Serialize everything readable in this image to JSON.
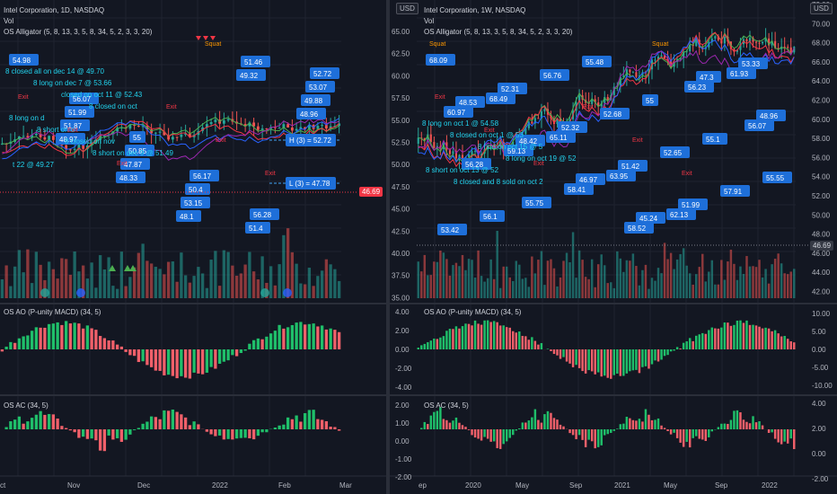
{
  "colors": {
    "bg": "#131722",
    "up": "#26a69a",
    "down": "#ef5350",
    "lips": "#4caf50",
    "teeth": "#f23645",
    "jaw": "#2962ff",
    "callout": "#1e6fd9",
    "note": "#22d3ee",
    "hist_up": "#1fbf6a",
    "hist_down": "#f0606a"
  },
  "icons": [
    "calendar-icon",
    "earnings-icon",
    "triangle-marker-icon"
  ],
  "left": {
    "header": {
      "title": "Intel Corporation, 1D, NASDAQ",
      "vol": "Vol",
      "alligator": "OS Alligator (5, 8, 13, 3, 5, 8, 34, 5, 2, 3, 3, 20)"
    },
    "ao_label": "OS AO (P-unity MACD) (34, 5)",
    "ac_label": "OS AC (34, 5)",
    "x_ticks": [
      "ct",
      "Nov",
      "Dec",
      "2022",
      "Feb",
      "Mar"
    ],
    "squat": "Squat",
    "callouts": [
      "54.98",
      "56.07",
      "55",
      "56.17",
      "56.28",
      "52.72",
      "51.99",
      "50.85",
      "50.4",
      "51.4",
      "53.07",
      "51.87",
      "47.87",
      "53.15",
      "51.46",
      "49.88",
      "48.97",
      "48.33",
      "48.1",
      "49.32",
      "48.96"
    ],
    "notes": [
      "8 closed all on dec 14 @ 49.70",
      "8 long on dec 7 @ 53.66",
      "closed on oct 11 @ 52.43",
      "8 closed on oct",
      "8 long on d",
      "8 short on o",
      "8 closed on nov",
      "8 short on dec 9 @ 51.49",
      "t 22 @ 49.27"
    ],
    "hline_labels": [
      "H (3) = 52.72",
      "L (3) = 47.78"
    ],
    "price_badge": "46.69",
    "exit_label": "Exit"
  },
  "right": {
    "header": {
      "title": "Intel Corporation, 1W, NASDAQ",
      "vol": "Vol",
      "alligator": "OS Alligator (5, 8, 13, 3, 5, 8, 34, 5, 2, 3, 3, 20)"
    },
    "usd": "USD",
    "ao_label": "OS AO (P-unity MACD) (34, 5)",
    "ac_label": "OS AC (34, 5)",
    "squat": "Squat",
    "usd_left": "USD",
    "y_left": [
      "65.00",
      "62.50",
      "60.00",
      "57.50",
      "55.00",
      "52.50",
      "50.00",
      "47.50",
      "45.00",
      "42.50",
      "40.00",
      "37.50",
      "35.00"
    ],
    "y_right": [
      "72.00",
      "70.00",
      "68.00",
      "66.00",
      "64.00",
      "62.00",
      "60.00",
      "58.00",
      "56.00",
      "54.00",
      "52.00",
      "50.00",
      "48.00",
      "46.00",
      "44.00",
      "42.00"
    ],
    "ao_left": [
      "4.00",
      "2.00",
      "0.00",
      "-2.00",
      "-4.00"
    ],
    "ao_right": [
      "10.00",
      "5.00",
      "0.00",
      "-5.00",
      "-10.00"
    ],
    "ac_left": [
      "2.00",
      "1.00",
      "0.00",
      "-1.00",
      "-2.00"
    ],
    "ac_right": [
      "4.00",
      "2.00",
      "0.00",
      "-2.00",
      "-4.00"
    ],
    "x_ticks": [
      "ep",
      "2020",
      "May",
      "Sep",
      "2021",
      "May",
      "Sep",
      "2022"
    ],
    "callouts": [
      "68.09",
      "68.49",
      "65.11",
      "63.95",
      "62.13",
      "61.93",
      "60.97",
      "59.13",
      "58.41",
      "58.52",
      "56.23",
      "56.07",
      "56.28",
      "55.75",
      "55.48",
      "55",
      "55.1",
      "55.55",
      "56.1",
      "56.76",
      "52.68",
      "52.65",
      "57.91",
      "53.42",
      "52.31",
      "52.32",
      "51.42",
      "51.99",
      "53.33",
      "48.53",
      "48.42",
      "46.97",
      "45.24",
      "47.3",
      "48.96"
    ],
    "notes": [
      "8 long on oct 1 @ 54.58",
      "8 closed on oct 1 @ 53",
      "8 hod on oct 15 @ 5",
      "8 long on oct 19 @ 52",
      "8 short on oct 13 @ 52",
      "8 closed and 8 sold on oct 2"
    ],
    "price_badge": "46.69",
    "exit_label": "Exit"
  }
}
